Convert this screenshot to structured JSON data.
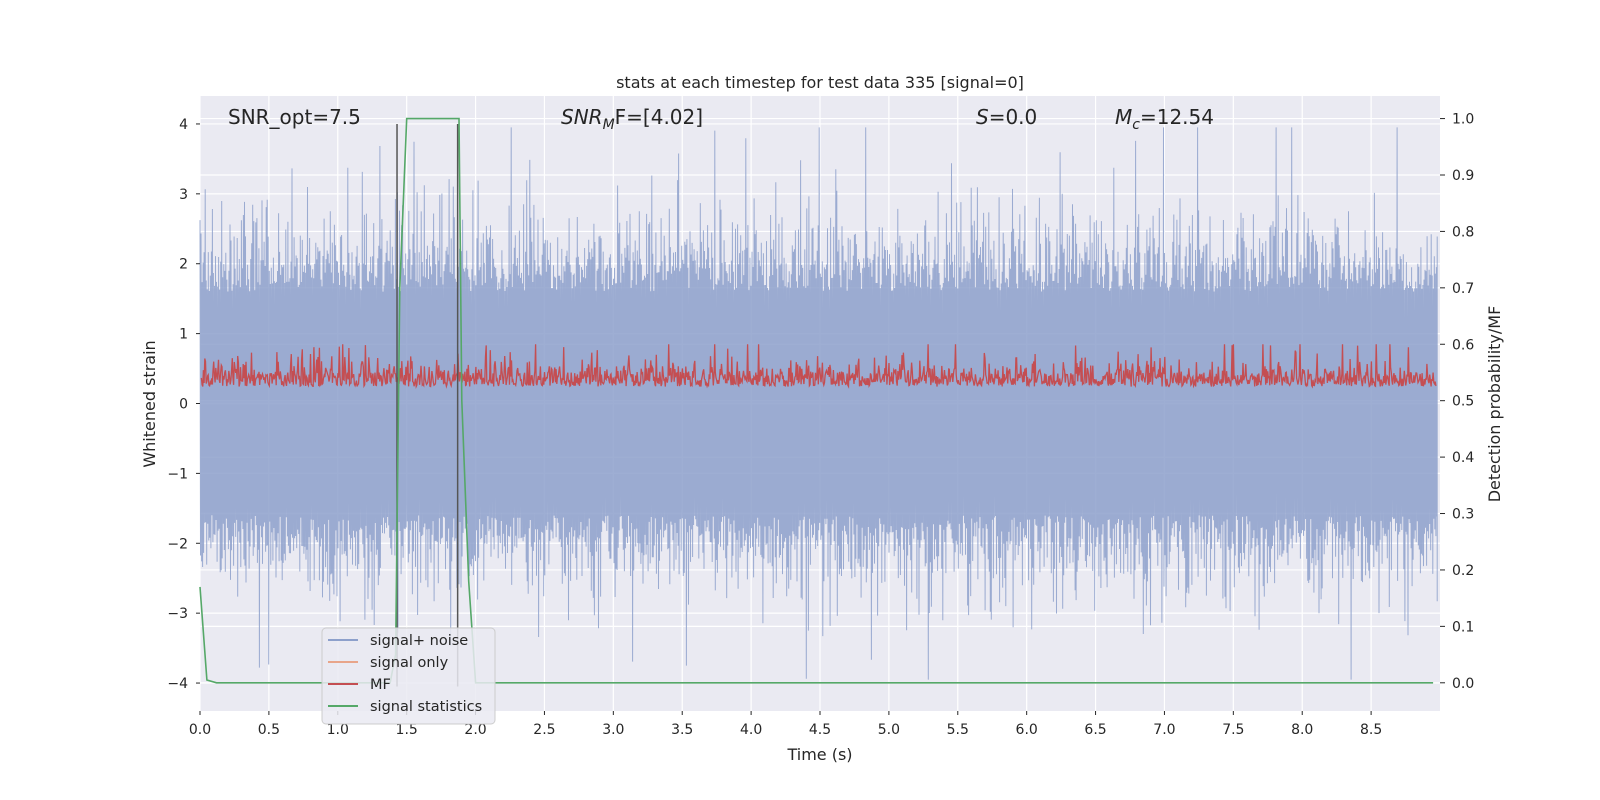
{
  "chart_data": {
    "type": "line",
    "title": "stats at each timestep for test data 335 [signal=0]",
    "xlabel": "Time (s)",
    "ylabel": "Whitened strain",
    "ylabel_right": "Detection probability/MF",
    "xlim": [
      0.0,
      9.0
    ],
    "ylim": [
      -4.4,
      4.4
    ],
    "ylim_right": [
      -0.05,
      1.04
    ],
    "x_ticks": [
      "0.0",
      "0.5",
      "1.0",
      "1.5",
      "2.0",
      "2.5",
      "3.0",
      "3.5",
      "4.0",
      "4.5",
      "5.0",
      "5.5",
      "6.0",
      "6.5",
      "7.0",
      "7.5",
      "8.0",
      "8.5"
    ],
    "y_ticks": [
      "4",
      "3",
      "2",
      "1",
      "0",
      "−1",
      "−2",
      "−3",
      "−4"
    ],
    "y_ticks_right": [
      "1.0",
      "0.9",
      "0.8",
      "0.7",
      "0.6",
      "0.5",
      "0.4",
      "0.3",
      "0.2",
      "0.1",
      "0.0"
    ],
    "grid": true,
    "legend_placement": "lower-left",
    "annotations": {
      "snr_opt": "SNR_opt=7.5",
      "snr_mf": "SNR",
      "snr_mf_sub": "M",
      "snr_mf_rest": "F=[4.02]",
      "s_val": "S",
      "s_rest": "=0.0",
      "mc": "M",
      "mc_sub": "c",
      "mc_rest": "=12.54"
    },
    "series": [
      {
        "name": "signal+ noise",
        "color": "#8da0cb",
        "axis": "left",
        "description_values": "noise envelope approx ±1.6 to ±4 whitened strain across 0–9 s"
      },
      {
        "name": "signal only",
        "color": "#e8a58a",
        "axis": "left",
        "values": []
      },
      {
        "name": "MF",
        "color": "#c44e52",
        "axis": "right",
        "range": [
          0.5,
          0.6
        ]
      },
      {
        "name": "signal statistics",
        "color": "#55a868",
        "axis": "right",
        "points": [
          [
            0.0,
            0.17
          ],
          [
            0.05,
            0.005
          ],
          [
            0.12,
            0.0
          ],
          [
            1.38,
            0.0
          ],
          [
            1.42,
            0.05
          ],
          [
            1.45,
            0.7
          ],
          [
            1.5,
            1.0
          ],
          [
            1.88,
            1.0
          ],
          [
            1.9,
            0.5
          ],
          [
            1.95,
            0.18
          ],
          [
            2.0,
            0.0
          ],
          [
            8.95,
            0.0
          ]
        ]
      }
    ],
    "vertical_markers": [
      1.43,
      1.87
    ]
  },
  "colors": {
    "background": "#ffffff",
    "plot_bg": "#eaeaf2",
    "grid": "#ffffff",
    "noise": "#8da0cb",
    "mf": "#c44e52",
    "stat": "#55a868",
    "signal_only": "#e8a58a",
    "marker": "#555555"
  }
}
